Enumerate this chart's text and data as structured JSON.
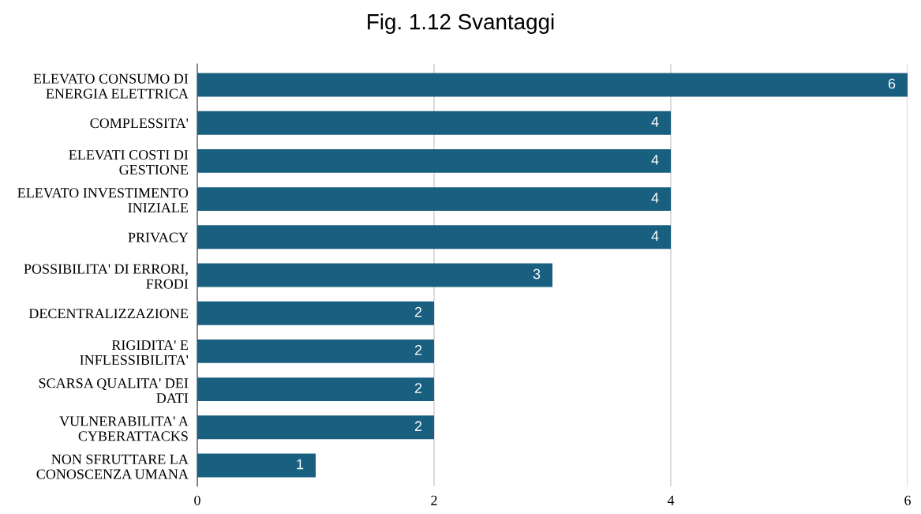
{
  "chart_data": {
    "type": "bar",
    "orientation": "horizontal",
    "title": "Fig. 1.12 Svantaggi",
    "categories": [
      "ELEVATO CONSUMO DI\nENERGIA ELETTRICA",
      "COMPLESSITA'",
      "ELEVATI COSTI DI\nGESTIONE",
      "ELEVATO INVESTIMENTO\nINIZIALE",
      "PRIVACY",
      "POSSIBILITA' DI ERRORI,\nFRODI",
      "DECENTRALIZZAZIONE",
      "RIGIDITA' E\nINFLESSIBILITA'",
      "SCARSA QUALITA' DEI\nDATI",
      "VULNERABILITA' A\nCYBERATTACKS",
      "NON SFRUTTARE LA\nCONOSCENZA UMANA"
    ],
    "values": [
      6,
      4,
      4,
      4,
      4,
      3,
      2,
      2,
      2,
      2,
      1
    ],
    "color": "#195f80",
    "xlim": [
      0,
      6
    ],
    "xticks": [
      0,
      2,
      4,
      6
    ],
    "grid": "x",
    "data_labels": true
  }
}
